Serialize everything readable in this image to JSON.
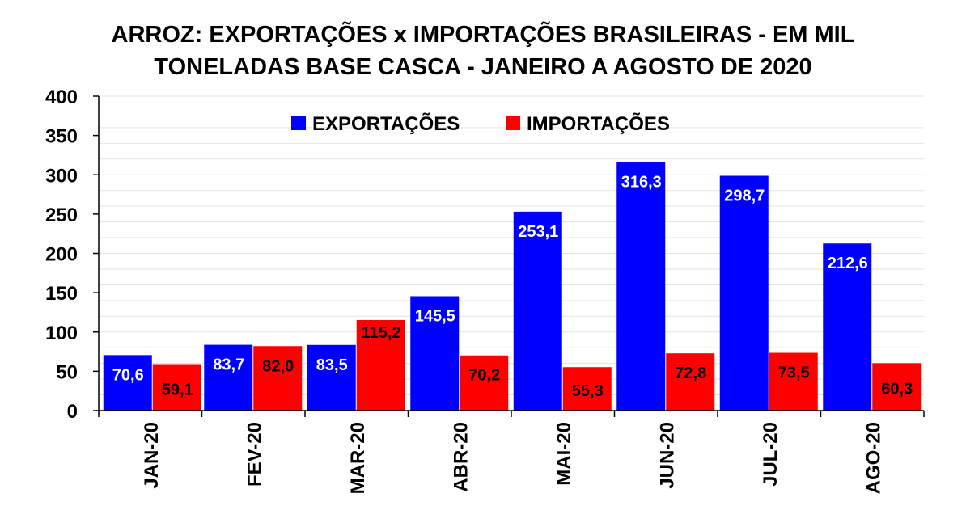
{
  "chart_data": {
    "type": "bar",
    "title": [
      "ARROZ: EXPORTAÇÕES x IMPORTAÇÕES BRASILEIRAS - EM MIL",
      "TONELADAS BASE CASCA - JANEIRO A AGOSTO DE 2020"
    ],
    "categories": [
      "JAN-20",
      "FEV-20",
      "MAR-20",
      "ABR-20",
      "MAI-20",
      "JUN-20",
      "JUL-20",
      "AGO-20"
    ],
    "series": [
      {
        "name": "EXPORTAÇÕES",
        "color": "#0000ff",
        "label_color": "#ffffff",
        "values": [
          70.6,
          83.7,
          83.5,
          145.5,
          253.1,
          316.3,
          298.7,
          212.6
        ],
        "labels": [
          "70,6",
          "83,7",
          "83,5",
          "145,5",
          "253,1",
          "316,3",
          "298,7",
          "212,6"
        ]
      },
      {
        "name": "IMPORTAÇÕES",
        "color": "#ff0000",
        "label_color": "#000000",
        "values": [
          59.1,
          82.0,
          115.2,
          70.2,
          55.3,
          72.8,
          73.5,
          60.3
        ],
        "labels": [
          "59,1",
          "82,0",
          "115,2",
          "70,2",
          "55,3",
          "72,8",
          "73,5",
          "60,3"
        ]
      }
    ],
    "ylim": [
      0,
      400
    ],
    "yticks": [
      "0",
      "50",
      "100",
      "150",
      "200",
      "250",
      "300",
      "350",
      "400"
    ],
    "grid": true,
    "legend": "top-center"
  }
}
